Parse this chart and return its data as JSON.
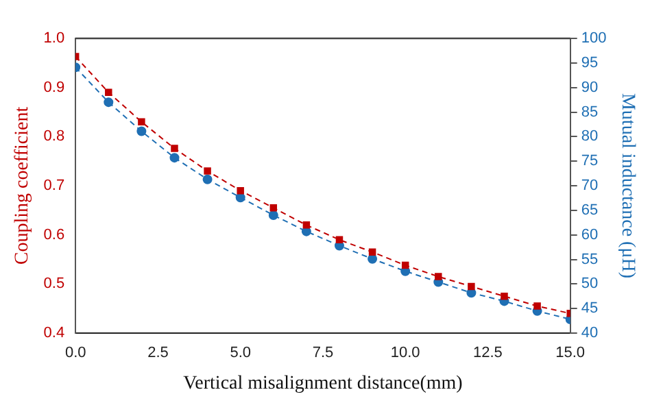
{
  "chart_data": {
    "type": "line",
    "xlabel": "Vertical misalignment distance(mm)",
    "ylabel": "Coupling coefficient",
    "y2label": "Mutual inductance (μH)",
    "x": [
      0,
      1,
      2,
      3,
      4,
      5,
      6,
      7,
      8,
      9,
      10,
      11,
      12,
      13,
      14,
      15
    ],
    "series": [
      {
        "color": "#c00000",
        "marker": "square",
        "line_style": "dashed",
        "values": [
          0.963,
          0.89,
          0.83,
          0.776,
          0.73,
          0.69,
          0.655,
          0.62,
          0.59,
          0.565,
          0.538,
          0.515,
          0.495,
          0.475,
          0.455,
          0.44
        ]
      },
      {
        "color": "#1f6fb4",
        "marker": "circle",
        "line_style": "dashed",
        "axis": "y2",
        "values": [
          94.1,
          87.0,
          81.1,
          75.7,
          71.3,
          67.6,
          64.0,
          60.7,
          57.8,
          55.1,
          52.6,
          50.4,
          48.2,
          46.5,
          44.5,
          42.8
        ]
      }
    ],
    "xlim": [
      0,
      15
    ],
    "xticks": [
      {
        "value": 0,
        "label": "0.0"
      },
      {
        "value": 2.5,
        "label": "2.5"
      },
      {
        "value": 5,
        "label": "5.0"
      },
      {
        "value": 7.5,
        "label": "7.5"
      },
      {
        "value": 10,
        "label": "10.0"
      },
      {
        "value": 12.5,
        "label": "12.5"
      },
      {
        "value": 15,
        "label": "15.0"
      }
    ],
    "ylim": [
      0.4,
      1.0
    ],
    "yticks": [
      0.4,
      0.5,
      0.6,
      0.7,
      0.8,
      0.9,
      {
        "value": 1.0,
        "label": "1.0"
      }
    ],
    "y2lim": [
      40,
      100
    ],
    "y2ticks": [
      40,
      45,
      50,
      55,
      60,
      65,
      70,
      75,
      80,
      85,
      90,
      95,
      100
    ],
    "grid": false,
    "legend": false
  }
}
